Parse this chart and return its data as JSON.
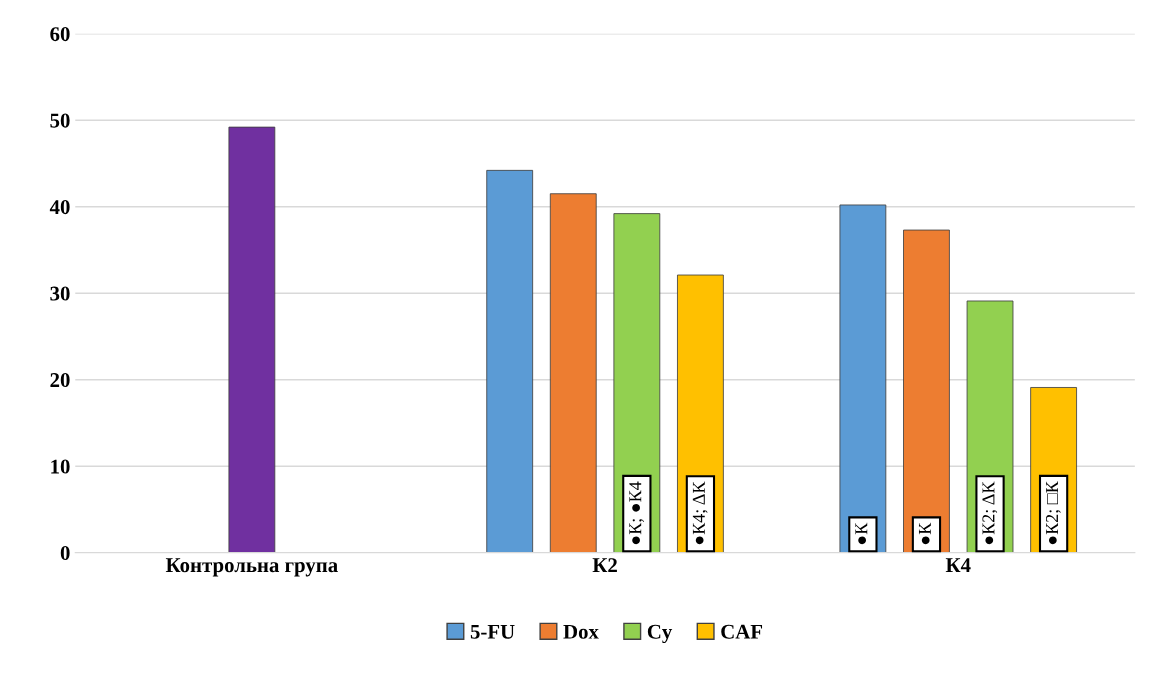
{
  "chart_data": {
    "type": "bar",
    "categories": [
      "Контрольна група",
      "К2",
      "К4"
    ],
    "series": [
      {
        "color": "#7030a0",
        "values": [
          49.2,
          null,
          null
        ]
      },
      {
        "name": "5-FU",
        "color": "#5b9bd5",
        "values": [
          null,
          44.2,
          40.2
        ],
        "value_labels": [
          null,
          null,
          "●К"
        ]
      },
      {
        "name": "Dox",
        "color": "#ed7d31",
        "values": [
          null,
          41.5,
          37.3
        ],
        "value_labels": [
          null,
          null,
          "●К"
        ]
      },
      {
        "name": "Cy",
        "color": "#92d050",
        "values": [
          null,
          39.2,
          29.1
        ],
        "value_labels": [
          null,
          "●К; ●К4",
          "●К2; ΔК"
        ]
      },
      {
        "name": "CAF",
        "color": "#ffc000",
        "values": [
          null,
          32.1,
          19.1
        ],
        "value_labels": [
          null,
          "●К4; ΔК",
          "●К2; □К"
        ]
      }
    ],
    "ylim": [
      0,
      60
    ],
    "yticks": [
      0,
      10,
      20,
      30,
      40,
      50,
      60
    ],
    "grid": "y",
    "legend": "bottom"
  }
}
